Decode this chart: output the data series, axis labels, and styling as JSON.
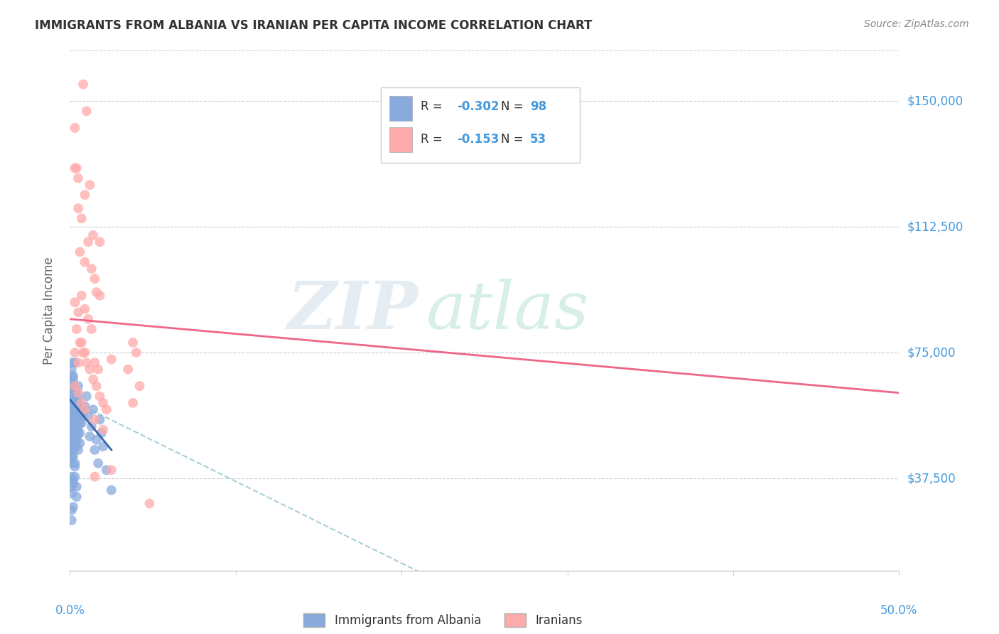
{
  "title": "IMMIGRANTS FROM ALBANIA VS IRANIAN PER CAPITA INCOME CORRELATION CHART",
  "source": "Source: ZipAtlas.com",
  "ylabel": "Per Capita Income",
  "ytick_labels": [
    "$37,500",
    "$75,000",
    "$112,500",
    "$150,000"
  ],
  "ytick_values": [
    37500,
    75000,
    112500,
    150000
  ],
  "ymin": 10000,
  "ymax": 165000,
  "xmin": 0.0,
  "xmax": 0.5,
  "legend_label1": "Immigrants from Albania",
  "legend_label2": "Iranians",
  "color_blue": "#88AADD",
  "color_pink": "#FFAAAA",
  "color_blue_dark": "#3366AA",
  "color_pink_dark": "#EE6688",
  "color_dashed": "#AACCDD",
  "watermark_zip": "ZIP",
  "watermark_atlas": "atlas",
  "albania_scatter": [
    [
      0.001,
      62000
    ],
    [
      0.001,
      58000
    ],
    [
      0.001,
      55000
    ],
    [
      0.001,
      52000
    ],
    [
      0.001,
      48000
    ],
    [
      0.001,
      45000
    ],
    [
      0.001,
      61000
    ],
    [
      0.001,
      56000
    ],
    [
      0.001,
      50000
    ],
    [
      0.001,
      44000
    ],
    [
      0.001,
      42000
    ],
    [
      0.001,
      59000
    ],
    [
      0.001,
      64000
    ],
    [
      0.001,
      66000
    ],
    [
      0.001,
      70000
    ],
    [
      0.001,
      46000
    ],
    [
      0.001,
      49000
    ],
    [
      0.001,
      53000
    ],
    [
      0.001,
      68000
    ],
    [
      0.001,
      72000
    ],
    [
      0.001,
      35000
    ],
    [
      0.001,
      38000
    ],
    [
      0.001,
      33000
    ],
    [
      0.001,
      28000
    ],
    [
      0.001,
      25000
    ],
    [
      0.002,
      60000
    ],
    [
      0.002,
      57000
    ],
    [
      0.002,
      55000
    ],
    [
      0.002,
      52000
    ],
    [
      0.002,
      49000
    ],
    [
      0.002,
      46000
    ],
    [
      0.002,
      62000
    ],
    [
      0.002,
      65000
    ],
    [
      0.002,
      68000
    ],
    [
      0.002,
      59000
    ],
    [
      0.002,
      44000
    ],
    [
      0.002,
      50000
    ],
    [
      0.002,
      53000
    ],
    [
      0.002,
      56000
    ],
    [
      0.002,
      58000
    ],
    [
      0.002,
      37000
    ],
    [
      0.002,
      36000
    ],
    [
      0.002,
      29000
    ],
    [
      0.002,
      64000
    ],
    [
      0.002,
      67000
    ],
    [
      0.003,
      58000
    ],
    [
      0.003,
      54000
    ],
    [
      0.003,
      51000
    ],
    [
      0.003,
      48000
    ],
    [
      0.003,
      55000
    ],
    [
      0.003,
      47000
    ],
    [
      0.003,
      61000
    ],
    [
      0.003,
      53000
    ],
    [
      0.003,
      56000
    ],
    [
      0.003,
      60000
    ],
    [
      0.003,
      42000
    ],
    [
      0.003,
      63000
    ],
    [
      0.003,
      41000
    ],
    [
      0.003,
      38000
    ],
    [
      0.003,
      72000
    ],
    [
      0.004,
      57000
    ],
    [
      0.004,
      52000
    ],
    [
      0.004,
      49000
    ],
    [
      0.004,
      61000
    ],
    [
      0.004,
      55000
    ],
    [
      0.004,
      50000
    ],
    [
      0.004,
      47000
    ],
    [
      0.004,
      35000
    ],
    [
      0.004,
      63000
    ],
    [
      0.004,
      32000
    ],
    [
      0.005,
      60000
    ],
    [
      0.005,
      53000
    ],
    [
      0.005,
      57000
    ],
    [
      0.005,
      46000
    ],
    [
      0.005,
      61000
    ],
    [
      0.005,
      65000
    ],
    [
      0.005,
      51000
    ],
    [
      0.006,
      56000
    ],
    [
      0.006,
      51000
    ],
    [
      0.006,
      54000
    ],
    [
      0.006,
      58000
    ],
    [
      0.006,
      55000
    ],
    [
      0.006,
      48000
    ],
    [
      0.007,
      58000
    ],
    [
      0.007,
      54000
    ],
    [
      0.008,
      57000
    ],
    [
      0.009,
      59000
    ],
    [
      0.01,
      62000
    ],
    [
      0.011,
      56000
    ],
    [
      0.012,
      50000
    ],
    [
      0.013,
      53000
    ],
    [
      0.014,
      58000
    ],
    [
      0.015,
      46000
    ],
    [
      0.016,
      49000
    ],
    [
      0.017,
      42000
    ],
    [
      0.018,
      55000
    ],
    [
      0.019,
      51000
    ],
    [
      0.02,
      47000
    ],
    [
      0.022,
      40000
    ],
    [
      0.025,
      34000
    ]
  ],
  "iranian_scatter": [
    [
      0.003,
      142000
    ],
    [
      0.008,
      155000
    ],
    [
      0.01,
      147000
    ],
    [
      0.004,
      130000
    ],
    [
      0.012,
      125000
    ],
    [
      0.005,
      118000
    ],
    [
      0.007,
      115000
    ],
    [
      0.009,
      122000
    ],
    [
      0.014,
      110000
    ],
    [
      0.018,
      108000
    ],
    [
      0.003,
      130000
    ],
    [
      0.005,
      127000
    ],
    [
      0.006,
      105000
    ],
    [
      0.009,
      102000
    ],
    [
      0.011,
      108000
    ],
    [
      0.013,
      100000
    ],
    [
      0.015,
      97000
    ],
    [
      0.016,
      93000
    ],
    [
      0.018,
      92000
    ],
    [
      0.003,
      90000
    ],
    [
      0.005,
      87000
    ],
    [
      0.007,
      92000
    ],
    [
      0.009,
      88000
    ],
    [
      0.011,
      85000
    ],
    [
      0.013,
      82000
    ],
    [
      0.004,
      82000
    ],
    [
      0.006,
      78000
    ],
    [
      0.008,
      75000
    ],
    [
      0.01,
      72000
    ],
    [
      0.012,
      70000
    ],
    [
      0.014,
      67000
    ],
    [
      0.016,
      65000
    ],
    [
      0.018,
      62000
    ],
    [
      0.02,
      60000
    ],
    [
      0.022,
      58000
    ],
    [
      0.003,
      75000
    ],
    [
      0.005,
      72000
    ],
    [
      0.007,
      78000
    ],
    [
      0.009,
      75000
    ],
    [
      0.015,
      72000
    ],
    [
      0.017,
      70000
    ],
    [
      0.003,
      65000
    ],
    [
      0.005,
      63000
    ],
    [
      0.007,
      60000
    ],
    [
      0.009,
      58000
    ],
    [
      0.015,
      55000
    ],
    [
      0.02,
      52000
    ],
    [
      0.025,
      73000
    ],
    [
      0.035,
      70000
    ],
    [
      0.038,
      78000
    ],
    [
      0.04,
      75000
    ],
    [
      0.038,
      60000
    ],
    [
      0.042,
      65000
    ],
    [
      0.015,
      38000
    ],
    [
      0.025,
      40000
    ],
    [
      0.048,
      30000
    ]
  ],
  "albania_trendline": [
    [
      0.0,
      61000
    ],
    [
      0.025,
      46000
    ]
  ],
  "iranian_trendline": [
    [
      0.0,
      85000
    ],
    [
      0.5,
      63000
    ]
  ],
  "albania_dashed_line": [
    [
      0.0,
      61000
    ],
    [
      0.25,
      0
    ]
  ]
}
